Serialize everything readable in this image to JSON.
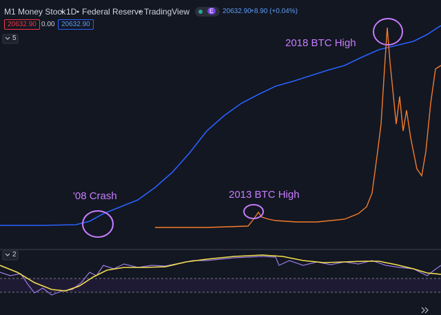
{
  "header": {
    "symbol": "M1 Money Stock",
    "interval": "1D",
    "source": "Federal Reserve",
    "platform": "TradingView",
    "badge": "E",
    "last_value": "20632.90",
    "change": "+8.90 (+0.04%)"
  },
  "ohlc_row": {
    "sell": "20632.90",
    "spread": "0.00",
    "buy": "20632.90"
  },
  "pane_toggles": {
    "main": "5",
    "lower": "2"
  },
  "annotations": {
    "btc_2018": "2018 BTC High",
    "btc_2013": "2013 BTC High",
    "crash_2008": "'08 Crash"
  }
}
